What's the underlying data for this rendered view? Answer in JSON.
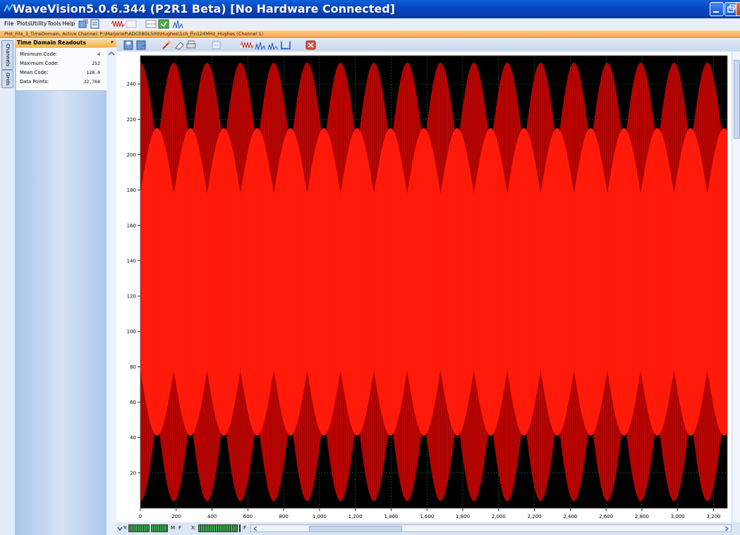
{
  "window": {
    "title": "WaveVision5.0.6.344 (P2R1 Beta)  [No Hardware Connected]",
    "icon": "wavevision-app-icon"
  },
  "menu": [
    "File",
    "Plots",
    "Utility",
    "Tools",
    "Help"
  ],
  "path_bar": "Plot_File_3_TimeDomain,  Active Channel: P:\\MarjorieP\\ADC08DL500\\Hughes\\1ch_Fin124MHz_Hughes (Channel 1)",
  "side_tabs": [
    "Channels",
    "Grids"
  ],
  "panel": {
    "title": "Time Domain Readouts",
    "pin": "ᵖ",
    "readouts": [
      {
        "label": "Minimum Code:",
        "value": "4"
      },
      {
        "label": "Maximum Code:",
        "value": "252"
      },
      {
        "label": "Mean Code:",
        "value": "128.0"
      },
      {
        "label": "Data Points:",
        "value": "32,768"
      }
    ]
  },
  "status": {
    "y_label": "Y:",
    "x_label": "X:",
    "m_label": "M",
    "f_label": "F",
    "f2_label": "F"
  },
  "colors": {
    "plot_background": "#000000",
    "waveform": "#ff1a0a",
    "waveform_dark": "#a00000",
    "grid": "#2f7a2f",
    "title_bar": "#0846c0",
    "path_bar": "#f6a94a"
  },
  "chart_data": {
    "type": "line",
    "title": "",
    "xlabel": "",
    "ylabel": "",
    "xlim": [
      0,
      3276.8
    ],
    "ylim": [
      0,
      256
    ],
    "x_ticks": [
      "0",
      "200",
      "400",
      "600",
      "800",
      "1,000",
      "1,200",
      "1,400",
      "1,600",
      "1,800",
      "2,000",
      "2,200",
      "2,400",
      "2,600",
      "2,800",
      "3,000",
      "3,200"
    ],
    "x_tick_values": [
      0,
      200,
      400,
      600,
      800,
      1000,
      1200,
      1400,
      1600,
      1800,
      2000,
      2200,
      2400,
      2600,
      2800,
      3000,
      3200
    ],
    "y_ticks": [
      "20",
      "40",
      "60",
      "80",
      "100",
      "120",
      "140",
      "160",
      "180",
      "200",
      "220",
      "240"
    ],
    "y_tick_values": [
      20,
      40,
      60,
      80,
      100,
      120,
      140,
      160,
      180,
      200,
      220,
      240
    ],
    "grid": true,
    "series": [
      {
        "min_code": 4,
        "max_code": 252,
        "mean_code": 128,
        "beat_period_samples": 186.2
      }
    ]
  }
}
